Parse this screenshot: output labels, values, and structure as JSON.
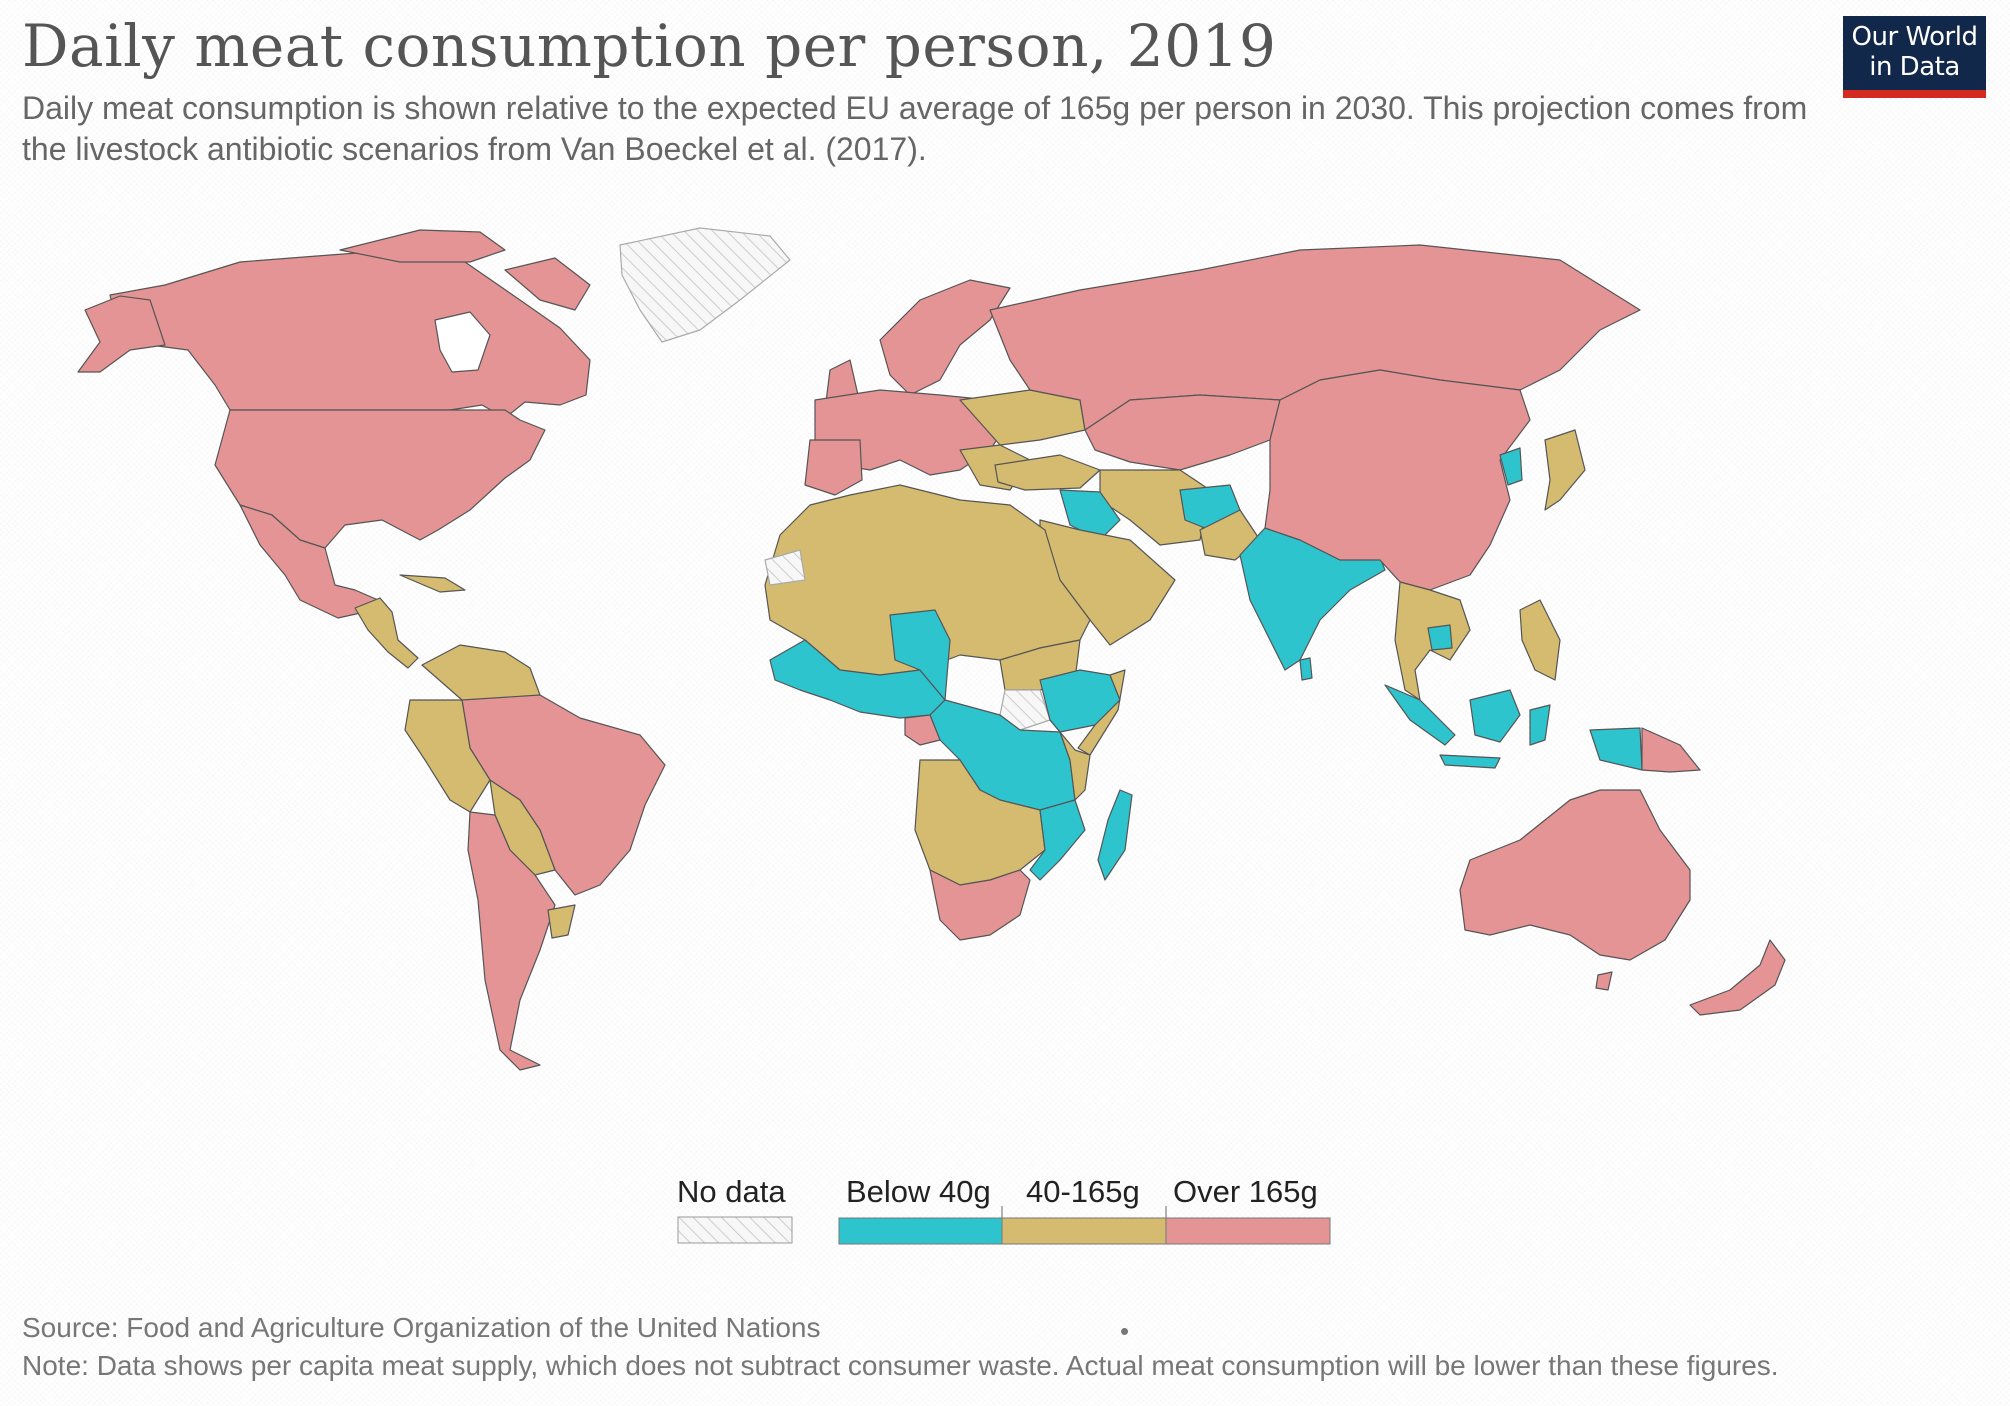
{
  "title": "Daily meat consumption per person, 2019",
  "subtitle": "Daily meat consumption is shown relative to the expected EU average of 165g per person in 2030. This projection comes from the livestock antibiotic scenarios from Van Boeckel et al. (2017).",
  "logo": {
    "line1": "Our World",
    "line2": "in Data"
  },
  "legend": {
    "no_data": "No data",
    "bins": [
      {
        "label": "Below 40g",
        "color": "#2ec4ce"
      },
      {
        "label": "40-165g",
        "color": "#d4bb6f"
      },
      {
        "label": "Over 165g",
        "color": "#e49494"
      }
    ]
  },
  "colors": {
    "over": "#e49494",
    "mid": "#d4bb6f",
    "low": "#2ec4ce",
    "no_data": "#f2f2f2",
    "border": "#555555"
  },
  "source": "Source: Food and Agriculture Organization of the United Nations",
  "dot": "•",
  "note": "Note: Data shows per capita meat supply, which does not subtract consumer waste. Actual meat consumption will be lower than these figures."
}
